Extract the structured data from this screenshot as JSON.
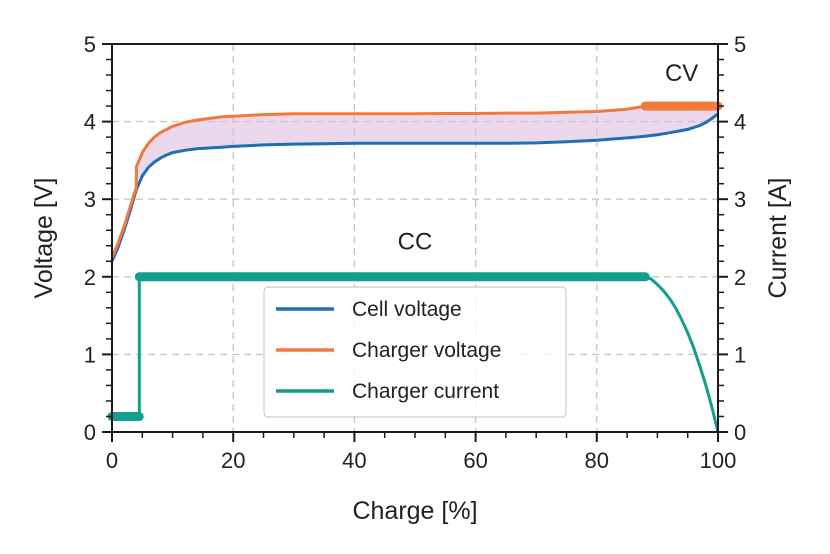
{
  "chart_data": {
    "type": "line",
    "xlabel": "Charge [%]",
    "ylabel": "Voltage [V]",
    "y2label": "Current [A]",
    "xlim": [
      0,
      100
    ],
    "ylim": [
      0,
      5
    ],
    "y2lim": [
      0,
      5
    ],
    "xticks": [
      0,
      20,
      40,
      60,
      80,
      100
    ],
    "yticks": [
      0,
      1,
      2,
      3,
      4,
      5
    ],
    "y2ticks": [
      0,
      1,
      2,
      3,
      4,
      5
    ],
    "grid": true,
    "legend_position": "lower-center",
    "annotations": [
      {
        "text": "CC",
        "x": 50,
        "y": 2.35
      },
      {
        "text": "CV",
        "x": 94,
        "y": 4.52
      }
    ],
    "series": [
      {
        "name": "Cell voltage",
        "color": "#1f6fb4",
        "x": [
          0,
          1,
          2,
          3,
          4,
          5,
          6,
          7,
          8,
          9,
          10,
          12,
          14,
          16,
          18,
          20,
          25,
          30,
          35,
          40,
          45,
          50,
          55,
          60,
          65,
          70,
          75,
          80,
          85,
          88,
          90,
          93,
          95,
          97,
          98,
          99,
          100
        ],
        "y": [
          2.2,
          2.38,
          2.6,
          2.85,
          3.12,
          3.3,
          3.41,
          3.48,
          3.53,
          3.57,
          3.6,
          3.63,
          3.65,
          3.66,
          3.67,
          3.68,
          3.7,
          3.71,
          3.715,
          3.72,
          3.72,
          3.72,
          3.72,
          3.72,
          3.72,
          3.725,
          3.74,
          3.76,
          3.79,
          3.81,
          3.83,
          3.87,
          3.9,
          3.95,
          3.99,
          4.04,
          4.1
        ]
      },
      {
        "name": "Charger voltage",
        "color": "#f07a3c",
        "x": [
          0,
          1,
          2,
          3,
          4,
          4.05,
          5,
          6,
          7,
          8,
          9,
          10,
          12,
          14,
          16,
          18,
          20,
          25,
          30,
          35,
          40,
          45,
          50,
          55,
          60,
          65,
          70,
          75,
          80,
          85,
          88,
          90,
          95,
          100
        ],
        "y": [
          2.25,
          2.43,
          2.65,
          2.9,
          3.15,
          3.42,
          3.6,
          3.72,
          3.8,
          3.86,
          3.9,
          3.94,
          3.99,
          4.02,
          4.04,
          4.06,
          4.07,
          4.09,
          4.1,
          4.1,
          4.1,
          4.1,
          4.1,
          4.105,
          4.105,
          4.11,
          4.11,
          4.12,
          4.13,
          4.16,
          4.2,
          4.2,
          4.2,
          4.2
        ]
      },
      {
        "name": "Charger current",
        "color": "#139d8e",
        "x": [
          0,
          4.5,
          4.5,
          88,
          89,
          90,
          91,
          92,
          93,
          94,
          95,
          96,
          97,
          98,
          99,
          100
        ],
        "y": [
          0.2,
          0.2,
          2.0,
          2.0,
          1.97,
          1.9,
          1.82,
          1.72,
          1.6,
          1.45,
          1.28,
          1.08,
          0.85,
          0.6,
          0.32,
          0.0
        ]
      }
    ]
  }
}
